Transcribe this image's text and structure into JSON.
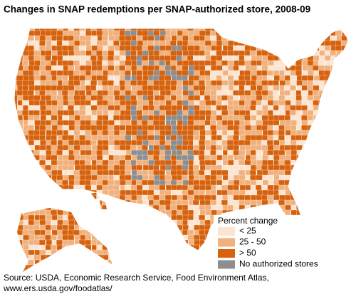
{
  "header": {
    "title": "Changes in SNAP redemptions per SNAP-authorized store, 2008-09"
  },
  "legend": {
    "title": "Percent change",
    "items": [
      {
        "label": "< 25",
        "color": "#fbe4d0"
      },
      {
        "label": "25 - 50",
        "color": "#f0b17c"
      },
      {
        "label": "> 50",
        "color": "#d6620e"
      },
      {
        "label": "No authorized stores",
        "color": "#8e8e8e"
      }
    ]
  },
  "source": {
    "lines": [
      "Source:  USDA, Economic Research Service, Food Environment Atlas,",
      "www.ers.usda.gov/foodatlas/"
    ]
  }
}
